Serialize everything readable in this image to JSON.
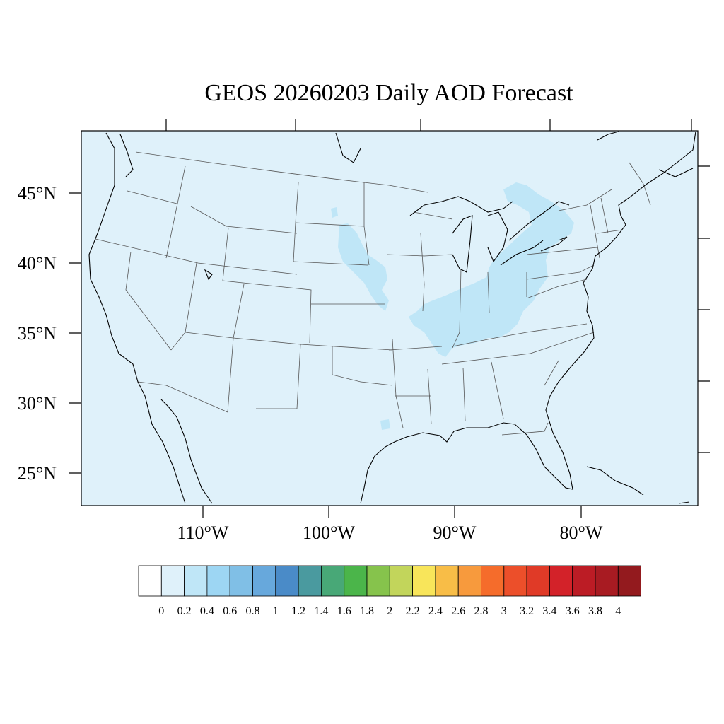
{
  "title": "GEOS 20260203 Daily AOD Forecast",
  "colors": {
    "ocean_background": "#dff1fa",
    "plume": "#bfe6f7"
  },
  "map": {
    "lat_labels": [
      "45°N",
      "40°N",
      "35°N",
      "30°N",
      "25°N"
    ],
    "lon_labels": [
      "110°W",
      "100°W",
      "90°W",
      "80°W"
    ]
  },
  "colorbar": {
    "labels": [
      "0",
      "0.2",
      "0.4",
      "0.6",
      "0.8",
      "1",
      "1.2",
      "1.4",
      "1.6",
      "1.8",
      "2",
      "2.2",
      "2.4",
      "2.6",
      "2.8",
      "3",
      "3.2",
      "3.4",
      "3.6",
      "3.8",
      "4"
    ],
    "colors": [
      "#ffffff",
      "#dff1fa",
      "#bfe6f7",
      "#9dd6f3",
      "#80bfe6",
      "#67a8dc",
      "#4a8bc8",
      "#4a9a9f",
      "#48a877",
      "#4bb54a",
      "#86c34c",
      "#c2d55b",
      "#f8e55a",
      "#f8bd47",
      "#f79a3d",
      "#f56c2b",
      "#ec4f2a",
      "#e03a27",
      "#d32229",
      "#bc1c25",
      "#a81b22",
      "#931a1e"
    ]
  }
}
